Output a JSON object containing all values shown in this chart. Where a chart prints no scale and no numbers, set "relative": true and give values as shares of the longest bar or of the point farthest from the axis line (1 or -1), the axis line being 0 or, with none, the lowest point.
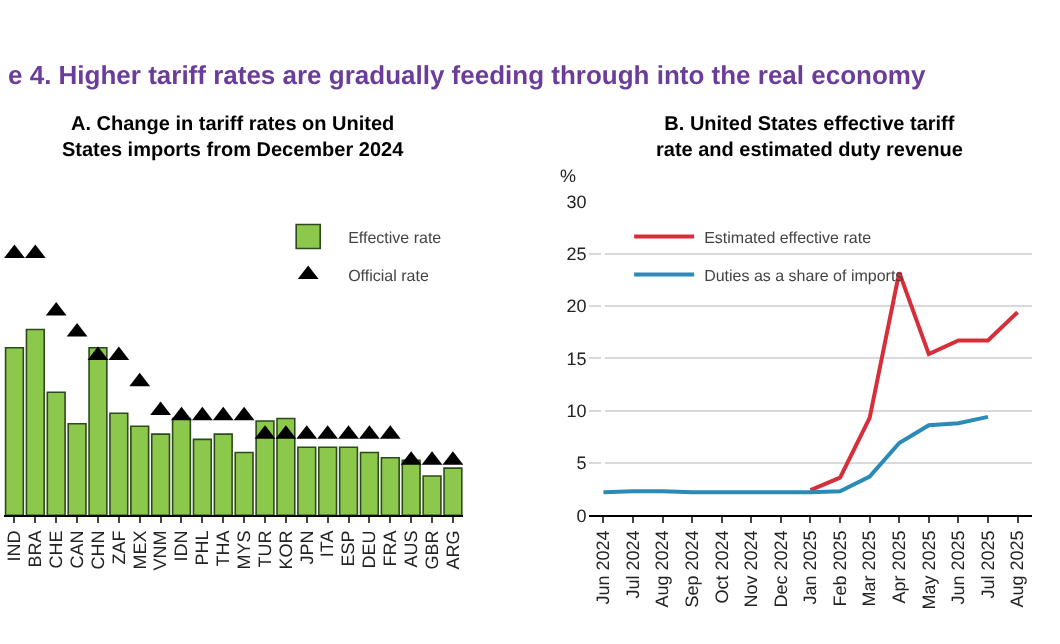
{
  "chart_data": [
    {
      "type": "bar",
      "title": "A. Change in tariff rates on United States imports from December 2024",
      "annotations": [
        "e 4. Higher tariff rates are gradually feeding through into the real economy"
      ],
      "relative": true,
      "legend": "top right",
      "categories": [
        "IND",
        "BRA",
        "CHE",
        "CAN",
        "CHN",
        "ZAF",
        "MEX",
        "VNM",
        "IDN",
        "PHL",
        "THA",
        "MYS",
        "TUR",
        "KOR",
        "JPN",
        "ITA",
        "ESP",
        "DEU",
        "FRA",
        "AUS",
        "GBR",
        "ARG"
      ],
      "series": [
        {
          "name": "Effective rate",
          "type": "bar",
          "color": "#8cc84b",
          "values": [
            0.64,
            0.71,
            0.47,
            0.35,
            0.64,
            0.39,
            0.34,
            0.31,
            0.37,
            0.29,
            0.31,
            0.24,
            0.36,
            0.37,
            0.26,
            0.26,
            0.26,
            0.24,
            0.22,
            0.21,
            0.15,
            0.18
          ]
        },
        {
          "name": "Official rate",
          "type": "scatter",
          "color": "#000000",
          "marker": "triangle",
          "values": [
            1,
            1,
            0.78,
            0.7,
            0.61,
            0.61,
            0.51,
            0.4,
            0.38,
            0.38,
            0.38,
            0.38,
            0.31,
            0.31,
            0.31,
            0.31,
            0.31,
            0.31,
            0.31,
            0.21,
            0.21,
            0.21
          ]
        }
      ]
    },
    {
      "type": "line",
      "title": "B. United States effective tariff rate and estimated duty revenue",
      "ylabel": "%",
      "grid": "y",
      "legend": "top left",
      "ylim": [
        0,
        30
      ],
      "yticks": [
        0,
        5,
        10,
        15,
        20,
        25,
        30
      ],
      "categories": [
        "Jun 2024",
        "Jul 2024",
        "Aug 2024",
        "Sep 2024",
        "Oct 2024",
        "Nov 2024",
        "Dec 2024",
        "Jan 2025",
        "Feb 2025",
        "Mar 2025",
        "Apr 2025",
        "May 2025",
        "Jun 2025",
        "Jul 2025",
        "Aug 2025"
      ],
      "series": [
        {
          "name": "Estimated effective rate",
          "color": "#d62f3a",
          "values": [
            null,
            null,
            null,
            null,
            null,
            null,
            null,
            2.4,
            3.6,
            9.3,
            23.2,
            15.4,
            16.7,
            16.7,
            19.4
          ]
        },
        {
          "name": "Duties as a share of imports",
          "color": "#2a8ab8",
          "values": [
            2.2,
            2.3,
            2.3,
            2.2,
            2.2,
            2.2,
            2.2,
            2.2,
            2.3,
            3.7,
            6.9,
            8.6,
            8.8,
            9.4,
            null
          ]
        }
      ]
    }
  ]
}
